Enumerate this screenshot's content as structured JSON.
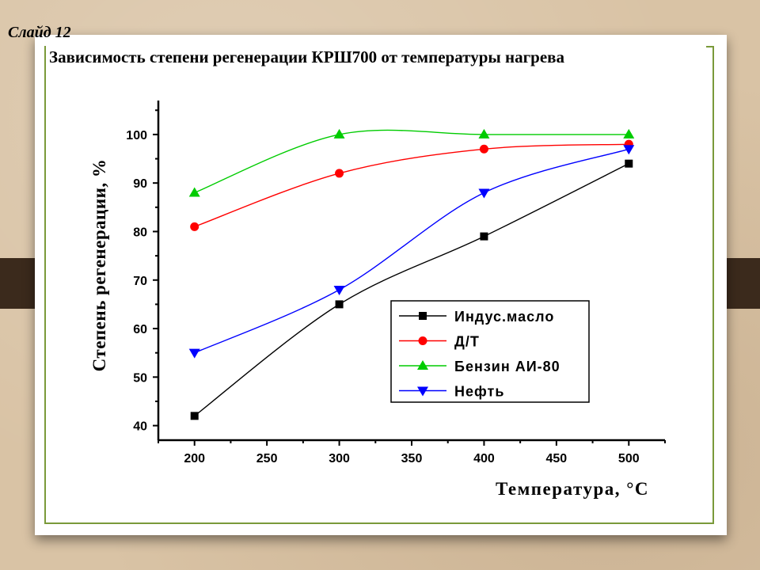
{
  "slide_label": "Слайд 12",
  "title": "Зависимость степени регенерации КРШ700 от температуры нагрева",
  "chart_data": {
    "type": "line",
    "xlabel": "Температура, °С",
    "ylabel": "Степень регенерации, %",
    "xlim": [
      175,
      525
    ],
    "ylim": [
      37,
      107
    ],
    "x_ticks": [
      200,
      250,
      300,
      350,
      400,
      450,
      500
    ],
    "y_ticks": [
      40,
      50,
      60,
      70,
      80,
      90,
      100
    ],
    "x": [
      200,
      300,
      400,
      500
    ],
    "grid": false,
    "legend_position": "lower-right",
    "series": [
      {
        "name": "Индус.масло",
        "values": [
          42,
          65,
          79,
          94
        ],
        "color": "#000000",
        "marker": "square"
      },
      {
        "name": "Д/Т",
        "values": [
          81,
          92,
          97,
          98
        ],
        "color": "#ff0000",
        "marker": "circle"
      },
      {
        "name": "Бензин АИ-80",
        "values": [
          88,
          100,
          100,
          100
        ],
        "color": "#00cc00",
        "marker": "triangle-up"
      },
      {
        "name": "Нефть",
        "values": [
          55,
          68,
          88,
          97
        ],
        "color": "#0000ff",
        "marker": "triangle-down"
      }
    ]
  }
}
